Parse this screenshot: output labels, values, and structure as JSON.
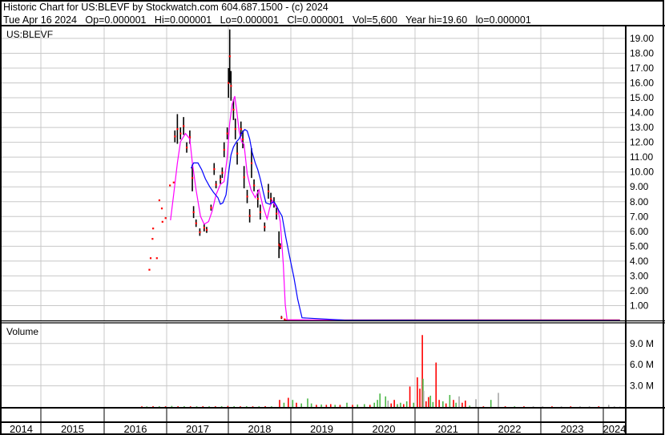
{
  "header": {
    "title": "Historic Chart for US:BLEVF by Stockwatch.com 604.687.1500 - (c) 2024",
    "quote": "Tue Apr 16 2024   Op=0.000001   Hi=0.000001   Lo=0.000001   Cl=0.000001   Vol=5,600   Year hi=19.60   lo=0.000001"
  },
  "colors": {
    "price_bar": "#000000",
    "close_marker": "#ff0000",
    "ma_short": "#ff00ff",
    "ma_long": "#0000ff",
    "volume_up": "#4cb848",
    "volume_down": "#ff0000",
    "volume_flat": "#a8a8a8",
    "grid": "#c8c8c8"
  },
  "chart_data": [
    {
      "type": "line",
      "panel": "price",
      "label": "US:BLEVF",
      "x_unit": "year",
      "ylim": [
        0,
        19.6
      ],
      "y_ticks": [
        "1.00",
        "2.00",
        "3.00",
        "4.00",
        "5.00",
        "6.00",
        "7.00",
        "8.00",
        "9.00",
        "10.00",
        "11.00",
        "12.00",
        "13.00",
        "14.00",
        "15.00",
        "16.00",
        "17.00",
        "18.00",
        "19.00"
      ],
      "grid": true,
      "price_bars": [
        [
          2016.74,
          3.42,
          3.42
        ],
        [
          2016.76,
          4.2,
          4.2
        ],
        [
          2016.79,
          5.5,
          5.5
        ],
        [
          2016.8,
          6.2,
          6.2
        ],
        [
          2016.86,
          4.2,
          4.2
        ],
        [
          2016.9,
          8.1,
          8.1
        ],
        [
          2016.94,
          7.55,
          7.55
        ],
        [
          2016.95,
          6.65,
          6.65
        ],
        [
          2017.0,
          6.9,
          6.9
        ],
        [
          2017.07,
          9.1,
          9.1
        ],
        [
          2017.13,
          9.3,
          9.3
        ],
        [
          2017.15,
          12.8,
          12.0
        ],
        [
          2017.19,
          13.9,
          11.9
        ],
        [
          2017.24,
          13.0,
          12.2
        ],
        [
          2017.29,
          13.7,
          12.5
        ],
        [
          2017.34,
          12.0,
          11.3
        ],
        [
          2017.39,
          12.8,
          11.9
        ],
        [
          2017.43,
          10.5,
          8.7
        ],
        [
          2017.45,
          7.7,
          6.9
        ],
        [
          2017.49,
          6.8,
          6.3
        ],
        [
          2017.55,
          6.2,
          5.7
        ],
        [
          2017.62,
          6.5,
          6.0
        ],
        [
          2017.66,
          6.3,
          5.9
        ],
        [
          2017.73,
          7.8,
          7.4
        ],
        [
          2017.78,
          10.6,
          9.8
        ],
        [
          2017.81,
          9.4,
          8.9
        ],
        [
          2017.88,
          9.8,
          9.2
        ],
        [
          2017.91,
          10.3,
          9.6
        ],
        [
          2017.94,
          12.0,
          11.0
        ],
        [
          2017.99,
          13.0,
          12.2
        ],
        [
          2018.01,
          17.0,
          15.0
        ],
        [
          2018.03,
          19.6,
          16.0
        ],
        [
          2018.05,
          16.8,
          14.8
        ],
        [
          2018.09,
          14.9,
          13.5
        ],
        [
          2018.12,
          13.6,
          12.2
        ],
        [
          2018.15,
          12.0,
          10.5
        ],
        [
          2018.21,
          13.4,
          12.4
        ],
        [
          2018.24,
          12.8,
          11.6
        ],
        [
          2018.26,
          10.4,
          8.9
        ],
        [
          2018.31,
          8.8,
          7.9
        ],
        [
          2018.35,
          7.5,
          6.6
        ],
        [
          2018.38,
          11.6,
          9.6
        ],
        [
          2018.42,
          9.5,
          8.7
        ],
        [
          2018.48,
          8.8,
          7.6
        ],
        [
          2018.52,
          7.8,
          6.8
        ],
        [
          2018.59,
          6.6,
          6.0
        ],
        [
          2018.65,
          9.2,
          8.2
        ],
        [
          2018.69,
          8.6,
          7.8
        ],
        [
          2018.74,
          8.3,
          7.6
        ],
        [
          2018.78,
          7.6,
          6.8
        ],
        [
          2018.82,
          6.0,
          4.2
        ],
        [
          2018.84,
          5.2,
          4.8
        ],
        [
          2018.86,
          0.3,
          0.1
        ],
        [
          2018.91,
          0.1,
          0.05
        ]
      ],
      "close_line_after": [
        [
          2018.91,
          0.05
        ],
        [
          2024.29,
          1e-06
        ]
      ],
      "series": [
        {
          "role": "ma-short",
          "points": [
            [
              2017.08,
              6.75
            ],
            [
              2017.13,
              8.46
            ],
            [
              2017.19,
              10.61
            ],
            [
              2017.24,
              12.05
            ],
            [
              2017.32,
              12.59
            ],
            [
              2017.39,
              12.23
            ],
            [
              2017.43,
              10.61
            ],
            [
              2017.49,
              8.81
            ],
            [
              2017.56,
              7.02
            ],
            [
              2017.62,
              6.48
            ],
            [
              2017.69,
              6.66
            ],
            [
              2017.75,
              7.38
            ],
            [
              2017.81,
              8.46
            ],
            [
              2017.88,
              9.17
            ],
            [
              2017.94,
              9.35
            ],
            [
              2017.99,
              10.97
            ],
            [
              2018.03,
              13.31
            ],
            [
              2018.07,
              14.57
            ],
            [
              2018.11,
              15.11
            ],
            [
              2018.14,
              14.21
            ],
            [
              2018.18,
              12.77
            ],
            [
              2018.22,
              12.05
            ],
            [
              2018.26,
              11.87
            ],
            [
              2018.31,
              9.89
            ],
            [
              2018.37,
              8.81
            ],
            [
              2018.44,
              8.27
            ],
            [
              2018.5,
              8.81
            ],
            [
              2018.56,
              7.73
            ],
            [
              2018.63,
              6.84
            ],
            [
              2018.67,
              7.55
            ],
            [
              2018.71,
              8.09
            ],
            [
              2018.76,
              7.73
            ],
            [
              2018.8,
              7.55
            ],
            [
              2018.84,
              6.66
            ],
            [
              2018.89,
              3.78
            ],
            [
              2018.92,
              1.08
            ],
            [
              2018.95,
              0.05
            ],
            [
              2019.87,
              0.0
            ],
            [
              2024.29,
              0.0
            ]
          ]
        },
        {
          "role": "ma-long",
          "points": [
            [
              2017.41,
              10.25
            ],
            [
              2017.45,
              10.61
            ],
            [
              2017.52,
              10.61
            ],
            [
              2017.58,
              10.16
            ],
            [
              2017.64,
              9.53
            ],
            [
              2017.71,
              9.0
            ],
            [
              2017.77,
              8.63
            ],
            [
              2017.84,
              8.27
            ],
            [
              2017.88,
              7.83
            ],
            [
              2017.92,
              7.92
            ],
            [
              2017.97,
              8.46
            ],
            [
              2018.01,
              9.89
            ],
            [
              2018.05,
              11.15
            ],
            [
              2018.09,
              11.69
            ],
            [
              2018.14,
              12.05
            ],
            [
              2018.18,
              12.23
            ],
            [
              2018.22,
              12.59
            ],
            [
              2018.27,
              12.86
            ],
            [
              2018.31,
              12.77
            ],
            [
              2018.35,
              12.23
            ],
            [
              2018.39,
              11.33
            ],
            [
              2018.44,
              10.61
            ],
            [
              2018.48,
              10.16
            ],
            [
              2018.52,
              9.53
            ],
            [
              2018.57,
              8.63
            ],
            [
              2018.61,
              7.92
            ],
            [
              2018.67,
              7.83
            ],
            [
              2018.74,
              8.0
            ],
            [
              2018.78,
              7.73
            ],
            [
              2018.82,
              7.38
            ],
            [
              2018.87,
              7.02
            ],
            [
              2018.93,
              5.58
            ],
            [
              2018.99,
              4.32
            ],
            [
              2019.06,
              2.88
            ],
            [
              2019.12,
              1.44
            ],
            [
              2019.19,
              0.18
            ],
            [
              2019.87,
              0.02
            ],
            [
              2024.29,
              0.0
            ]
          ]
        }
      ]
    },
    {
      "type": "bar",
      "panel": "volume",
      "label": "Volume",
      "x_unit": "year",
      "y_unit": "M",
      "ylim": [
        0,
        10.5
      ],
      "y_ticks": [
        {
          "v": 3,
          "label": "3.0 M"
        },
        {
          "v": 6,
          "label": "6.0 M"
        },
        {
          "v": 9,
          "label": "9.0 M"
        }
      ],
      "grid": true,
      "bars": [
        [
          2016.62,
          0.1,
          "r"
        ],
        [
          2016.7,
          0.08,
          "g"
        ],
        [
          2016.8,
          0.12,
          "r"
        ],
        [
          2016.9,
          0.1,
          "g"
        ],
        [
          2017.0,
          0.1,
          "r"
        ],
        [
          2017.1,
          0.15,
          "g"
        ],
        [
          2017.2,
          0.1,
          "r"
        ],
        [
          2017.3,
          0.12,
          "g"
        ],
        [
          2017.4,
          0.1,
          "r"
        ],
        [
          2017.5,
          0.1,
          "g"
        ],
        [
          2017.6,
          0.12,
          "r"
        ],
        [
          2017.7,
          0.1,
          "g"
        ],
        [
          2017.8,
          0.1,
          "r"
        ],
        [
          2017.9,
          0.12,
          "g"
        ],
        [
          2018.0,
          0.15,
          "r"
        ],
        [
          2018.1,
          0.12,
          "g"
        ],
        [
          2018.2,
          0.1,
          "r"
        ],
        [
          2018.3,
          0.12,
          "g"
        ],
        [
          2018.4,
          0.1,
          "r"
        ],
        [
          2018.5,
          0.1,
          "g"
        ],
        [
          2018.6,
          0.12,
          "r"
        ],
        [
          2018.7,
          0.1,
          "g"
        ],
        [
          2018.83,
          1.0,
          "r"
        ],
        [
          2018.9,
          0.6,
          "g"
        ],
        [
          2018.97,
          1.3,
          "r"
        ],
        [
          2019.04,
          1.0,
          "g"
        ],
        [
          2019.1,
          0.6,
          "r"
        ],
        [
          2019.18,
          0.5,
          "g"
        ],
        [
          2019.28,
          1.2,
          "g"
        ],
        [
          2019.34,
          0.5,
          "g"
        ],
        [
          2019.42,
          0.3,
          "r"
        ],
        [
          2019.5,
          0.35,
          "g"
        ],
        [
          2019.58,
          0.3,
          "r"
        ],
        [
          2019.65,
          0.4,
          "r"
        ],
        [
          2019.72,
          0.3,
          "g"
        ],
        [
          2019.8,
          0.3,
          "r"
        ],
        [
          2019.91,
          0.6,
          "g"
        ],
        [
          2020.0,
          0.3,
          "r"
        ],
        [
          2020.08,
          0.35,
          "g"
        ],
        [
          2020.19,
          0.4,
          "g"
        ],
        [
          2020.28,
          0.3,
          "r"
        ],
        [
          2020.35,
          0.6,
          "g"
        ],
        [
          2020.4,
          1.0,
          "g"
        ],
        [
          2020.44,
          1.9,
          "g"
        ],
        [
          2020.53,
          1.5,
          "g"
        ],
        [
          2020.57,
          0.9,
          "k"
        ],
        [
          2020.62,
          0.5,
          "r"
        ],
        [
          2020.67,
          1.0,
          "r"
        ],
        [
          2020.72,
          0.4,
          "g"
        ],
        [
          2020.77,
          0.6,
          "g"
        ],
        [
          2020.82,
          0.4,
          "r"
        ],
        [
          2020.87,
          0.8,
          "g"
        ],
        [
          2020.92,
          2.9,
          "r"
        ],
        [
          2020.98,
          0.6,
          "g"
        ],
        [
          2021.04,
          4.2,
          "r"
        ],
        [
          2021.08,
          2.6,
          "r"
        ],
        [
          2021.12,
          10.2,
          "r"
        ],
        [
          2021.13,
          4.0,
          "g"
        ],
        [
          2021.14,
          2.3,
          "k"
        ],
        [
          2021.18,
          0.8,
          "r"
        ],
        [
          2021.22,
          1.4,
          "r"
        ],
        [
          2021.25,
          1.6,
          "g"
        ],
        [
          2021.29,
          0.7,
          "g"
        ],
        [
          2021.34,
          6.3,
          "r"
        ],
        [
          2021.39,
          1.0,
          "r"
        ],
        [
          2021.45,
          0.8,
          "g"
        ],
        [
          2021.5,
          0.5,
          "r"
        ],
        [
          2021.56,
          1.7,
          "g"
        ],
        [
          2021.62,
          1.0,
          "r"
        ],
        [
          2021.66,
          0.6,
          "g"
        ],
        [
          2021.71,
          1.5,
          "k"
        ],
        [
          2021.76,
          0.6,
          "r"
        ],
        [
          2021.81,
          0.9,
          "r"
        ],
        [
          2021.88,
          0.2,
          "g"
        ],
        [
          2021.98,
          1.1,
          "k"
        ],
        [
          2022.1,
          0.1,
          "r"
        ],
        [
          2022.22,
          1.0,
          "g"
        ],
        [
          2022.34,
          2.0,
          "k"
        ],
        [
          2022.45,
          0.1,
          "r"
        ],
        [
          2022.6,
          0.1,
          "g"
        ],
        [
          2022.75,
          0.1,
          "r"
        ],
        [
          2022.9,
          0.1,
          "k"
        ],
        [
          2023.05,
          0.1,
          "k"
        ],
        [
          2023.2,
          0.1,
          "r"
        ],
        [
          2023.35,
          0.1,
          "k"
        ],
        [
          2023.5,
          0.1,
          "r"
        ],
        [
          2023.65,
          0.1,
          "k"
        ],
        [
          2023.8,
          0.1,
          "k"
        ],
        [
          2023.95,
          0.1,
          "r"
        ],
        [
          2024.11,
          0.3,
          "k"
        ],
        [
          2024.2,
          0.1,
          "k"
        ],
        [
          2024.29,
          0.05,
          "k"
        ]
      ]
    }
  ],
  "x_axis": {
    "years": [
      "2014",
      "2015",
      "2016",
      "2017",
      "2018",
      "2019",
      "2020",
      "2021",
      "2022",
      "2023",
      "2024"
    ]
  }
}
